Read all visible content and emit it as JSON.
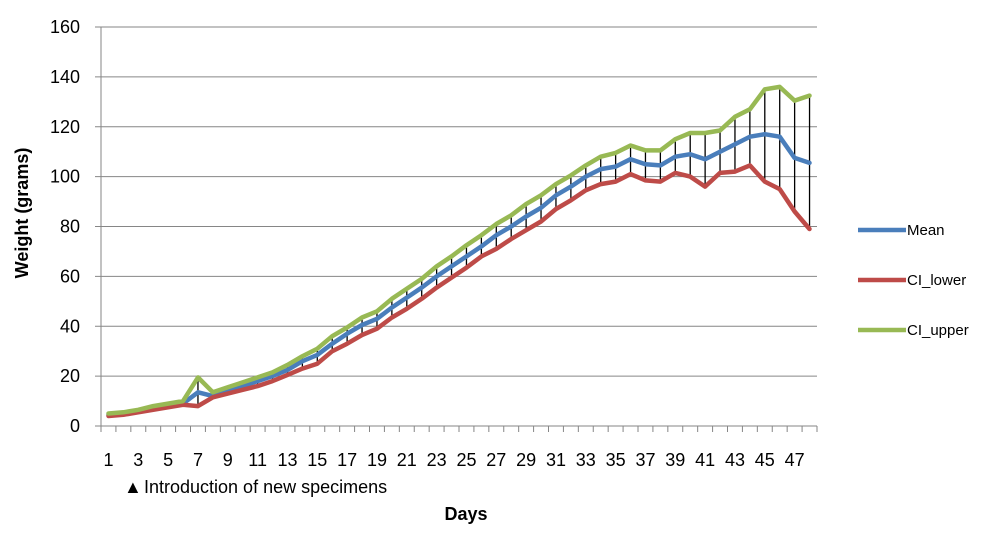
{
  "chart_data": {
    "type": "line",
    "xlabel": "Days",
    "ylabel": "Weight (grams)",
    "ylim": [
      0,
      160
    ],
    "yticks": [
      0,
      20,
      40,
      60,
      80,
      100,
      120,
      140,
      160
    ],
    "grid": "horizontal",
    "legend_position": "right",
    "x": [
      1,
      2,
      3,
      4,
      5,
      6,
      7,
      8,
      9,
      10,
      11,
      12,
      13,
      14,
      15,
      16,
      17,
      18,
      19,
      20,
      21,
      22,
      23,
      24,
      25,
      26,
      27,
      28,
      29,
      30,
      31,
      32,
      33,
      34,
      35,
      36,
      37,
      38,
      39,
      40,
      41,
      42,
      43,
      44,
      45,
      46,
      47,
      48
    ],
    "x_tick_labels": [
      "1",
      "3",
      "5",
      "7",
      "9",
      "11",
      "13",
      "15",
      "17",
      "19",
      "21",
      "23",
      "25",
      "27",
      "29",
      "31",
      "33",
      "35",
      "37",
      "39",
      "41",
      "43",
      "45",
      "47"
    ],
    "error_bars": "vertical lines from CI_lower to CI_upper at each day",
    "series": [
      {
        "name": "Mean",
        "color": "#4a7ebb",
        "values": [
          4.5,
          5.0,
          6.0,
          7.0,
          8.2,
          9.0,
          13.5,
          12.0,
          14.0,
          16.0,
          18.0,
          20.0,
          22.5,
          26.0,
          28.5,
          33.0,
          37.0,
          40.5,
          43.0,
          47.5,
          51.5,
          55.5,
          60.0,
          64.0,
          68.0,
          72.0,
          76.5,
          80.0,
          84.0,
          87.5,
          92.5,
          96.0,
          100.0,
          103.0,
          104.0,
          107.0,
          105.0,
          104.5,
          108.0,
          109.0,
          107.0,
          110.0,
          113.0,
          116.0,
          117.0,
          116.0,
          107.5,
          105.5
        ]
      },
      {
        "name": "CI_lower",
        "color": "#be4b48",
        "values": [
          4.0,
          4.5,
          5.5,
          6.5,
          7.5,
          8.5,
          8.0,
          11.5,
          13.0,
          14.5,
          16.0,
          18.0,
          20.5,
          23.0,
          25.0,
          30.0,
          33.0,
          36.5,
          39.0,
          43.5,
          47.0,
          51.0,
          55.5,
          59.5,
          63.5,
          68.0,
          71.0,
          75.0,
          78.5,
          82.0,
          87.0,
          90.5,
          94.5,
          97.0,
          98.0,
          101.0,
          98.5,
          98.0,
          101.5,
          100.0,
          96.0,
          101.5,
          102.0,
          104.5,
          98.0,
          95.0,
          86.0,
          79.0
        ]
      },
      {
        "name": "CI_upper",
        "color": "#98b954",
        "values": [
          5.0,
          5.5,
          6.5,
          8.0,
          9.0,
          10.0,
          19.5,
          13.5,
          15.5,
          17.5,
          19.5,
          21.5,
          24.5,
          28.0,
          31.0,
          36.0,
          39.5,
          43.5,
          46.0,
          51.0,
          55.0,
          59.0,
          64.0,
          68.0,
          72.5,
          76.5,
          81.0,
          84.5,
          89.0,
          92.5,
          97.0,
          100.5,
          104.5,
          108.0,
          109.5,
          112.5,
          110.5,
          110.5,
          115.0,
          117.5,
          117.5,
          118.5,
          124.0,
          127.0,
          135.0,
          136.0,
          130.5,
          132.5
        ]
      }
    ],
    "annotation": {
      "marker": "▲",
      "text": "Introduction of new specimens"
    }
  }
}
